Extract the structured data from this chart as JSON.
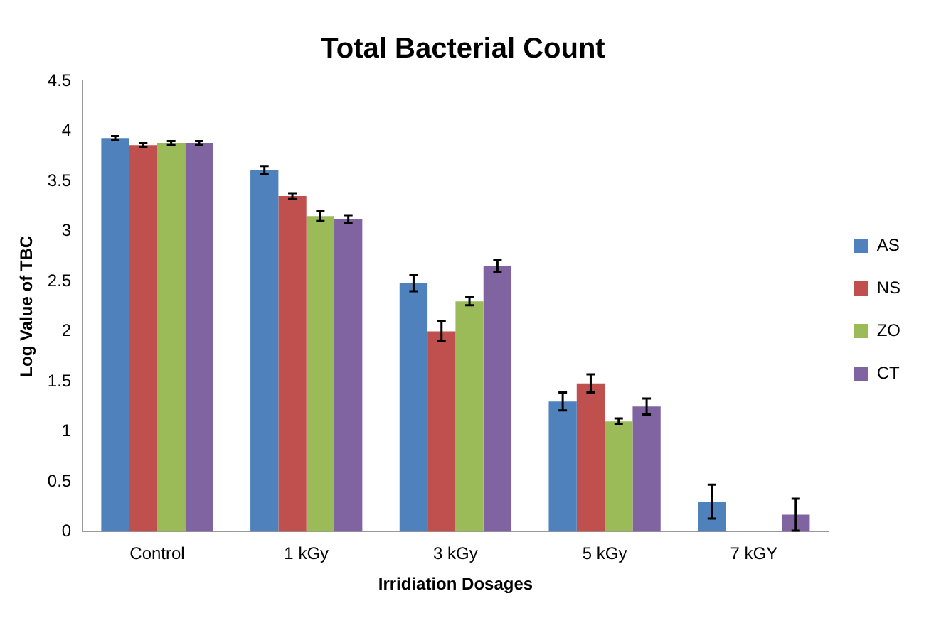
{
  "chart_data": {
    "type": "bar",
    "title": "Total Bacterial Count",
    "xlabel": "Irridiation Dosages",
    "ylabel": "Log Value of TBC",
    "categories": [
      "Control",
      "1 kGy",
      "3 kGy",
      "5 kGy",
      "7 kGY"
    ],
    "series": [
      {
        "name": "AS",
        "color": "#4f81bd",
        "values": [
          3.93,
          3.61,
          2.48,
          1.3,
          0.3
        ],
        "errors": [
          0.02,
          0.04,
          0.08,
          0.09,
          0.17
        ]
      },
      {
        "name": "NS",
        "color": "#c0504d",
        "values": [
          3.86,
          3.35,
          2.0,
          1.48,
          null
        ],
        "errors": [
          0.02,
          0.03,
          0.1,
          0.09,
          null
        ]
      },
      {
        "name": "ZO",
        "color": "#9bbb59",
        "values": [
          3.88,
          3.15,
          2.3,
          1.1,
          null
        ],
        "errors": [
          0.02,
          0.05,
          0.04,
          0.03,
          null
        ]
      },
      {
        "name": "CT",
        "color": "#8064a2",
        "values": [
          3.88,
          3.12,
          2.65,
          1.25,
          0.17
        ],
        "errors": [
          0.02,
          0.04,
          0.06,
          0.08,
          0.16
        ]
      }
    ],
    "ylim": [
      0,
      4.5
    ],
    "yticks": [
      0,
      0.5,
      1,
      1.5,
      2,
      2.5,
      3,
      3.5,
      4,
      4.5
    ],
    "grid": false,
    "legend": "right"
  }
}
